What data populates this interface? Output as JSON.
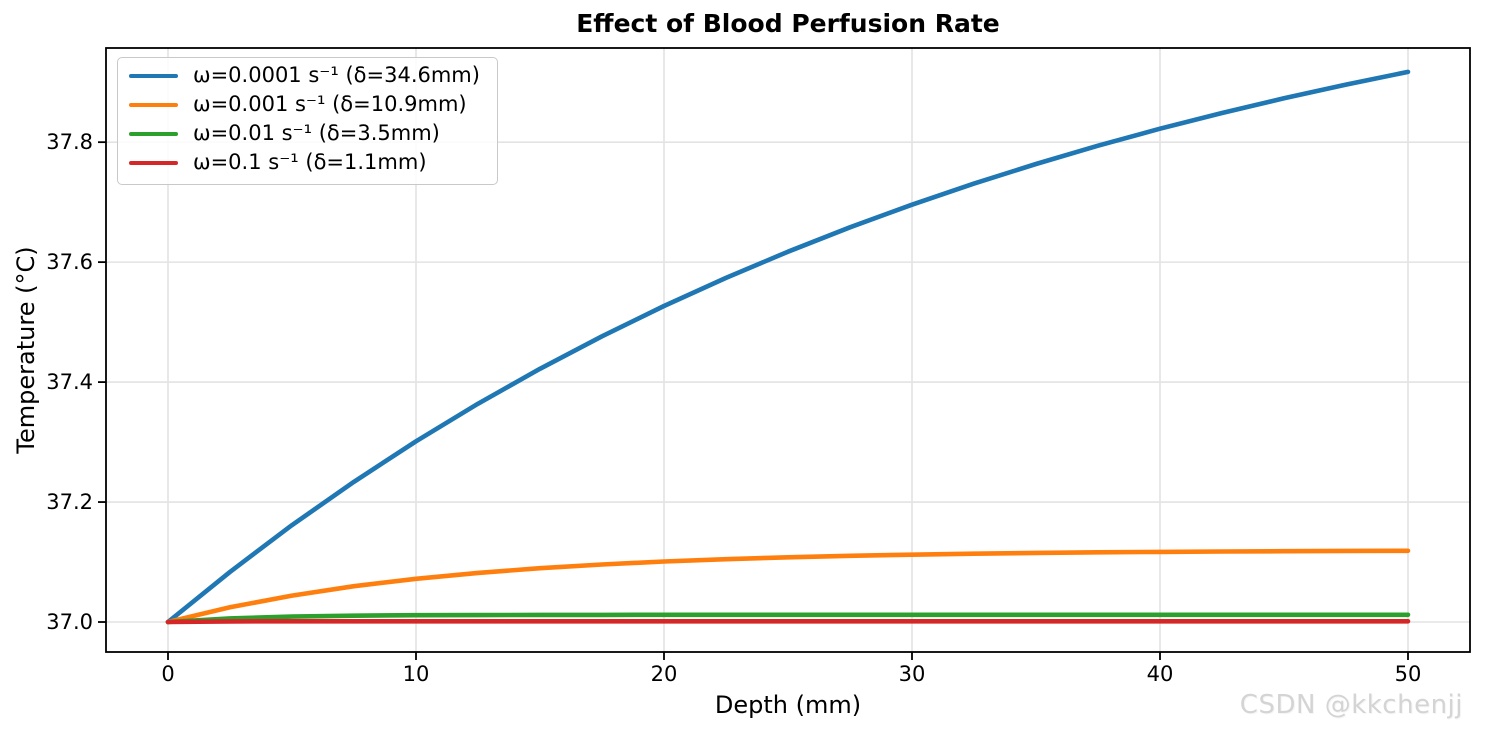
{
  "watermark": "CSDN @kkchenjj",
  "chart_data": {
    "type": "line",
    "title": "Effect of Blood Perfusion Rate",
    "xlabel": "Depth (mm)",
    "ylabel": "Temperature (°C)",
    "xlim": [
      -2.5,
      52.5
    ],
    "ylim": [
      36.95,
      37.957
    ],
    "grid": true,
    "grid_color": "#e3e3e3",
    "legend_position": "upper-left",
    "x_ticks": [
      0,
      10,
      20,
      30,
      40,
      50
    ],
    "x_tick_labels": [
      "0",
      "10",
      "20",
      "30",
      "40",
      "50"
    ],
    "y_ticks": [
      37.0,
      37.2,
      37.4,
      37.6,
      37.8
    ],
    "y_tick_labels": [
      "37.0",
      "37.2",
      "37.4",
      "37.6",
      "37.8"
    ],
    "x": [
      0,
      2.5,
      5,
      7.5,
      10,
      12.5,
      15,
      17.5,
      20,
      22.5,
      25,
      27.5,
      30,
      32.5,
      35,
      37.5,
      40,
      42.5,
      45,
      47.5,
      50
    ],
    "series": [
      {
        "label": "ω=0.0001 s⁻¹ (δ=34.6mm)",
        "omega_s": "0.0001",
        "delta_mm": 34.6,
        "color": "#1f77b4",
        "values": [
          37.0,
          37.0836,
          37.1615,
          37.2338,
          37.3012,
          37.3639,
          37.4221,
          37.4764,
          37.5268,
          37.5737,
          37.6174,
          37.658,
          37.6958,
          37.7309,
          37.7636,
          37.7941,
          37.8224,
          37.8487,
          37.8732,
          37.896,
          37.9172
        ]
      },
      {
        "label": "ω=0.001 s⁻¹ (δ=10.9mm)",
        "omega_s": "0.001",
        "delta_mm": 10.9,
        "color": "#ff7f0e",
        "values": [
          37.0,
          37.0246,
          37.0441,
          37.0597,
          37.0721,
          37.0819,
          37.0897,
          37.0959,
          37.1008,
          37.1048,
          37.1079,
          37.1104,
          37.1123,
          37.1139,
          37.1152,
          37.1162,
          37.1169,
          37.1176,
          37.1181,
          37.1185,
          37.1188
        ]
      },
      {
        "label": "ω=0.01 s⁻¹ (δ=3.5mm)",
        "omega_s": "0.01",
        "delta_mm": 3.5,
        "color": "#2ca02c",
        "values": [
          37.0,
          37.0061,
          37.0091,
          37.0106,
          37.0113,
          37.0116,
          37.0118,
          37.0119,
          37.012,
          37.012,
          37.012,
          37.012,
          37.012,
          37.012,
          37.012,
          37.012,
          37.012,
          37.012,
          37.012,
          37.012,
          37.012
        ]
      },
      {
        "label": "ω=0.1 s⁻¹ (δ=1.1mm)",
        "omega_s": "0.1",
        "delta_mm": 1.1,
        "color": "#d62728",
        "values": [
          37.0,
          37.0011,
          37.0012,
          37.0012,
          37.0012,
          37.0012,
          37.0012,
          37.0012,
          37.0012,
          37.0012,
          37.0012,
          37.0012,
          37.0012,
          37.0012,
          37.0012,
          37.0012,
          37.0012,
          37.0012,
          37.0012,
          37.0012,
          37.0012
        ]
      }
    ]
  }
}
